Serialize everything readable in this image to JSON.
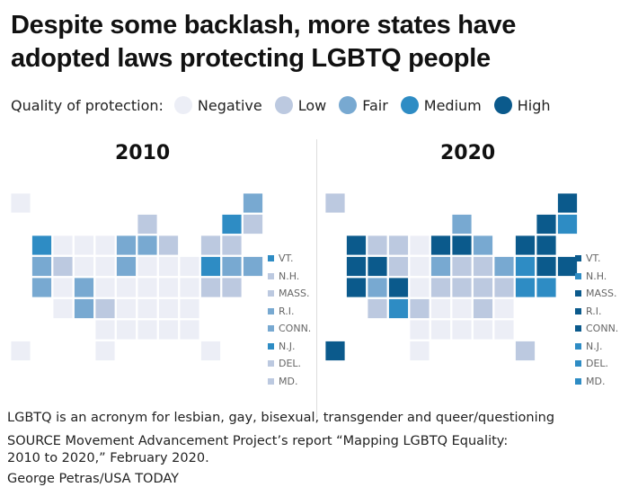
{
  "title": "Despite some backlash, more states have adopted laws protecting LGBTQ people",
  "legend": {
    "label": "Quality of protection:",
    "items": [
      {
        "key": "negative",
        "label": "Negative",
        "color": "#eceef6"
      },
      {
        "key": "low",
        "label": "Low",
        "color": "#bcc9e0"
      },
      {
        "key": "fair",
        "label": "Fair",
        "color": "#78a9d1"
      },
      {
        "key": "medium",
        "label": "Medium",
        "color": "#2e8cc4"
      },
      {
        "key": "high",
        "label": "High",
        "color": "#0b5a8c"
      }
    ]
  },
  "maps": [
    {
      "year": "2010",
      "levels": {
        "WA": "medium",
        "OR": "fair",
        "CA": "fair",
        "NV": "low",
        "CO": "fair",
        "NM": "fair",
        "IA": "fair",
        "MN": "fair",
        "IL": "fair",
        "WI": "low",
        "MI": "low",
        "NY": "low",
        "ME": "fair",
        "KS": "low",
        "VT": "medium",
        "NH": "low",
        "MA": "low",
        "RI": "fair",
        "CT": "fair",
        "NJ": "medium",
        "DE": "low",
        "MD": "low"
      },
      "small_states": [
        {
          "label": "VT.",
          "level": "medium"
        },
        {
          "label": "N.H.",
          "level": "low"
        },
        {
          "label": "MASS.",
          "level": "low"
        },
        {
          "label": "R.I.",
          "level": "fair"
        },
        {
          "label": "CONN.",
          "level": "fair"
        },
        {
          "label": "N.J.",
          "level": "medium"
        },
        {
          "label": "DEL.",
          "level": "low"
        },
        {
          "label": "MD.",
          "level": "low"
        }
      ]
    },
    {
      "year": "2020",
      "levels": {
        "WA": "high",
        "OR": "high",
        "CA": "high",
        "NV": "high",
        "CO": "high",
        "MN": "high",
        "IL": "high",
        "ME": "high",
        "NY": "high",
        "HI": "high",
        "NM": "medium",
        "UT": "fair",
        "IA": "fair",
        "WI": "fair",
        "MI": "fair",
        "PA": "fair",
        "AZ": "low",
        "MT": "low",
        "ID": "low",
        "WY": "low",
        "KS": "low",
        "MO": "low",
        "IN": "low",
        "OH": "low",
        "KY": "low",
        "WV": "low",
        "VA": "low",
        "NC": "low",
        "FL": "low",
        "AK": "low",
        "VT": "high",
        "NH": "medium",
        "MA": "high",
        "RI": "high",
        "CT": "high",
        "NJ": "medium",
        "DE": "medium",
        "MD": "medium"
      },
      "small_states": [
        {
          "label": "VT.",
          "level": "high"
        },
        {
          "label": "N.H.",
          "level": "medium"
        },
        {
          "label": "MASS.",
          "level": "high"
        },
        {
          "label": "R.I.",
          "level": "high"
        },
        {
          "label": "CONN.",
          "level": "high"
        },
        {
          "label": "N.J.",
          "level": "medium"
        },
        {
          "label": "DEL.",
          "level": "medium"
        },
        {
          "label": "MD.",
          "level": "medium"
        }
      ]
    }
  ],
  "footnotes": {
    "definition": "LGBTQ is an acronym for lesbian, gay, bisexual, transgender and queer/questioning",
    "source": "SOURCE Movement Advancement Project’s report “Mapping LGBTQ Equality: 2010 to 2020,” February 2020.",
    "credit": "George Petras/USA TODAY"
  }
}
